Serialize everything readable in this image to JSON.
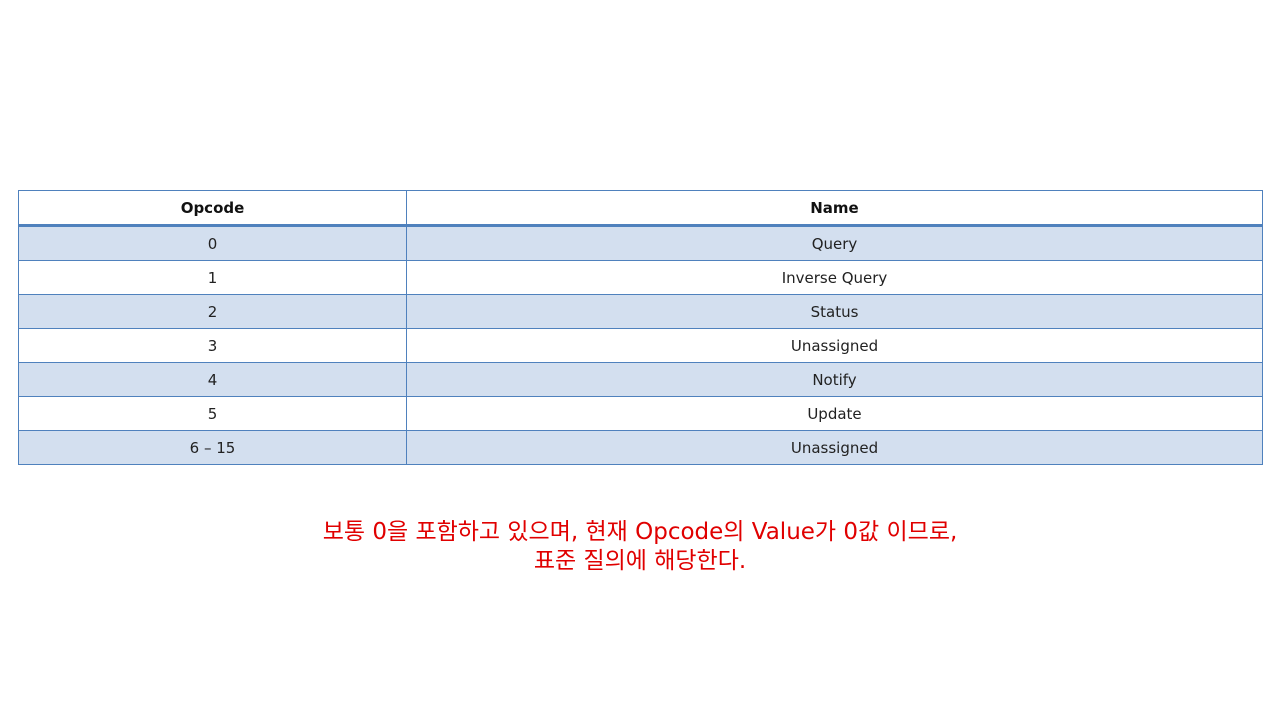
{
  "table": {
    "headers": [
      "Opcode",
      "Name"
    ],
    "rows": [
      {
        "opcode": "0",
        "name": "Query"
      },
      {
        "opcode": "1",
        "name": "Inverse Query"
      },
      {
        "opcode": "2",
        "name": "Status"
      },
      {
        "opcode": "3",
        "name": "Unassigned"
      },
      {
        "opcode": "4",
        "name": "Notify"
      },
      {
        "opcode": "5",
        "name": "Update"
      },
      {
        "opcode": "6 – 15",
        "name": "Unassigned"
      }
    ]
  },
  "caption": {
    "line1": "보통 0을 포함하고 있으며, 현재 Opcode의 Value가 0값 이므로,",
    "line2": "표준 질의에 해당한다."
  },
  "colors": {
    "border": "#4f81bd",
    "stripe": "#d3dfef",
    "caption_text": "#e00000"
  }
}
